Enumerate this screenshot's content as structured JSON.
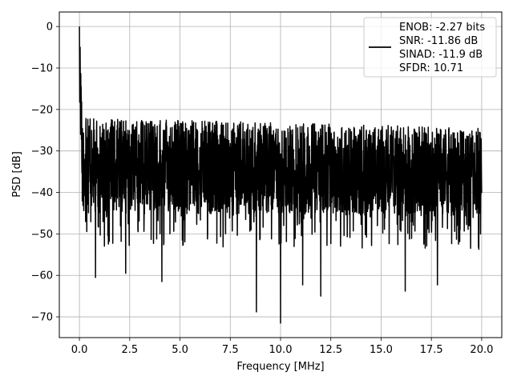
{
  "chart_data": {
    "type": "line",
    "xlabel": "Frequency [MHz]",
    "ylabel": "PSD [dB]",
    "xlim": [
      -1.0,
      21.0
    ],
    "ylim": [
      -75.0,
      3.5
    ],
    "xticks": [
      0.0,
      2.5,
      5.0,
      7.5,
      10.0,
      12.5,
      15.0,
      17.5,
      20.0
    ],
    "xtick_labels": [
      "0.0",
      "2.5",
      "5.0",
      "7.5",
      "10.0",
      "12.5",
      "15.0",
      "17.5",
      "20.0"
    ],
    "yticks": [
      0,
      -10,
      -20,
      -30,
      -40,
      -50,
      -60,
      -70
    ],
    "ytick_labels": [
      "0",
      "−10",
      "−20",
      "−30",
      "−40",
      "−50",
      "−60",
      "−70"
    ],
    "grid": true,
    "legend_position": "upper-right",
    "series": [
      {
        "name": "ENOB: -2.27 bits\nSNR: -11.86 dB\nSINAD: -11.9 dB\nSFDR: 10.71",
        "legend_lines": [
          "ENOB: -2.27 bits",
          "SNR: -11.86 dB",
          "SINAD: -11.9 dB",
          "SFDR: 10.71"
        ],
        "color": "#000000",
        "x_range": [
          0.0,
          20.0
        ],
        "peak": {
          "x": 0.0,
          "y": 0.0
        },
        "floor_upper_y": -22,
        "floor_lower_y": -45,
        "notable_dips": [
          {
            "x": 0.8,
            "y": -60.5
          },
          {
            "x": 2.3,
            "y": -59.5
          },
          {
            "x": 4.1,
            "y": -61.5
          },
          {
            "x": 8.8,
            "y": -68.8
          },
          {
            "x": 10.0,
            "y": -71.5
          },
          {
            "x": 11.1,
            "y": -62.3
          },
          {
            "x": 12.0,
            "y": -65.0
          },
          {
            "x": 16.2,
            "y": -63.8
          },
          {
            "x": 17.8,
            "y": -62.3
          }
        ]
      }
    ]
  }
}
